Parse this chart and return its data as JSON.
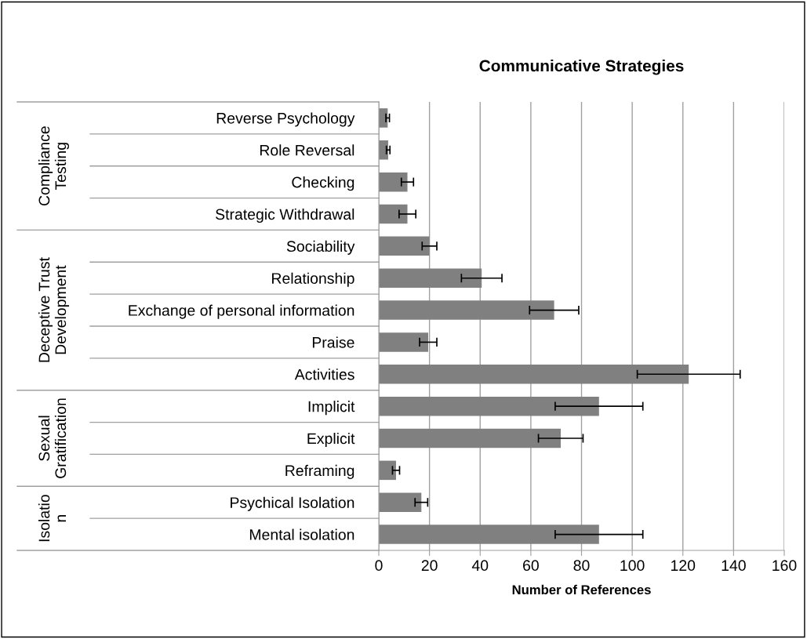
{
  "chart_data": {
    "type": "bar",
    "orientation": "horizontal",
    "title": "Communicative Strategies",
    "xlabel": "Number of References",
    "categories": [
      "Reverse Psychology",
      "Role Reversal",
      "Checking",
      "Strategic Withdrawal",
      "Sociability",
      "Relationship",
      "Exchange of personal information",
      "Praise",
      "Activities",
      "Implicit",
      "Explicit",
      "Reframing",
      "Psychical Isolation",
      "Mental isolation"
    ],
    "values": [
      3.5,
      3.7,
      11.3,
      11.3,
      20.0,
      40.6,
      69.2,
      19.5,
      122.3,
      86.9,
      71.8,
      6.8,
      16.8,
      86.9
    ],
    "errors": [
      0.7,
      0.7,
      2.4,
      3.3,
      2.9,
      8,
      9.7,
      3.4,
      20.3,
      17.3,
      8.8,
      1.4,
      2.5,
      17.3
    ],
    "color": "#808080",
    "xlim": [
      0,
      160
    ],
    "xticks": [
      0,
      20,
      40,
      60,
      80,
      100,
      120,
      140,
      160
    ],
    "grid": "x",
    "annotations": [
      "Compliance\nTesting",
      "Deceptive Trust\nDevelopment",
      "Sexual\nGratification",
      "Isolatio\nn"
    ]
  }
}
